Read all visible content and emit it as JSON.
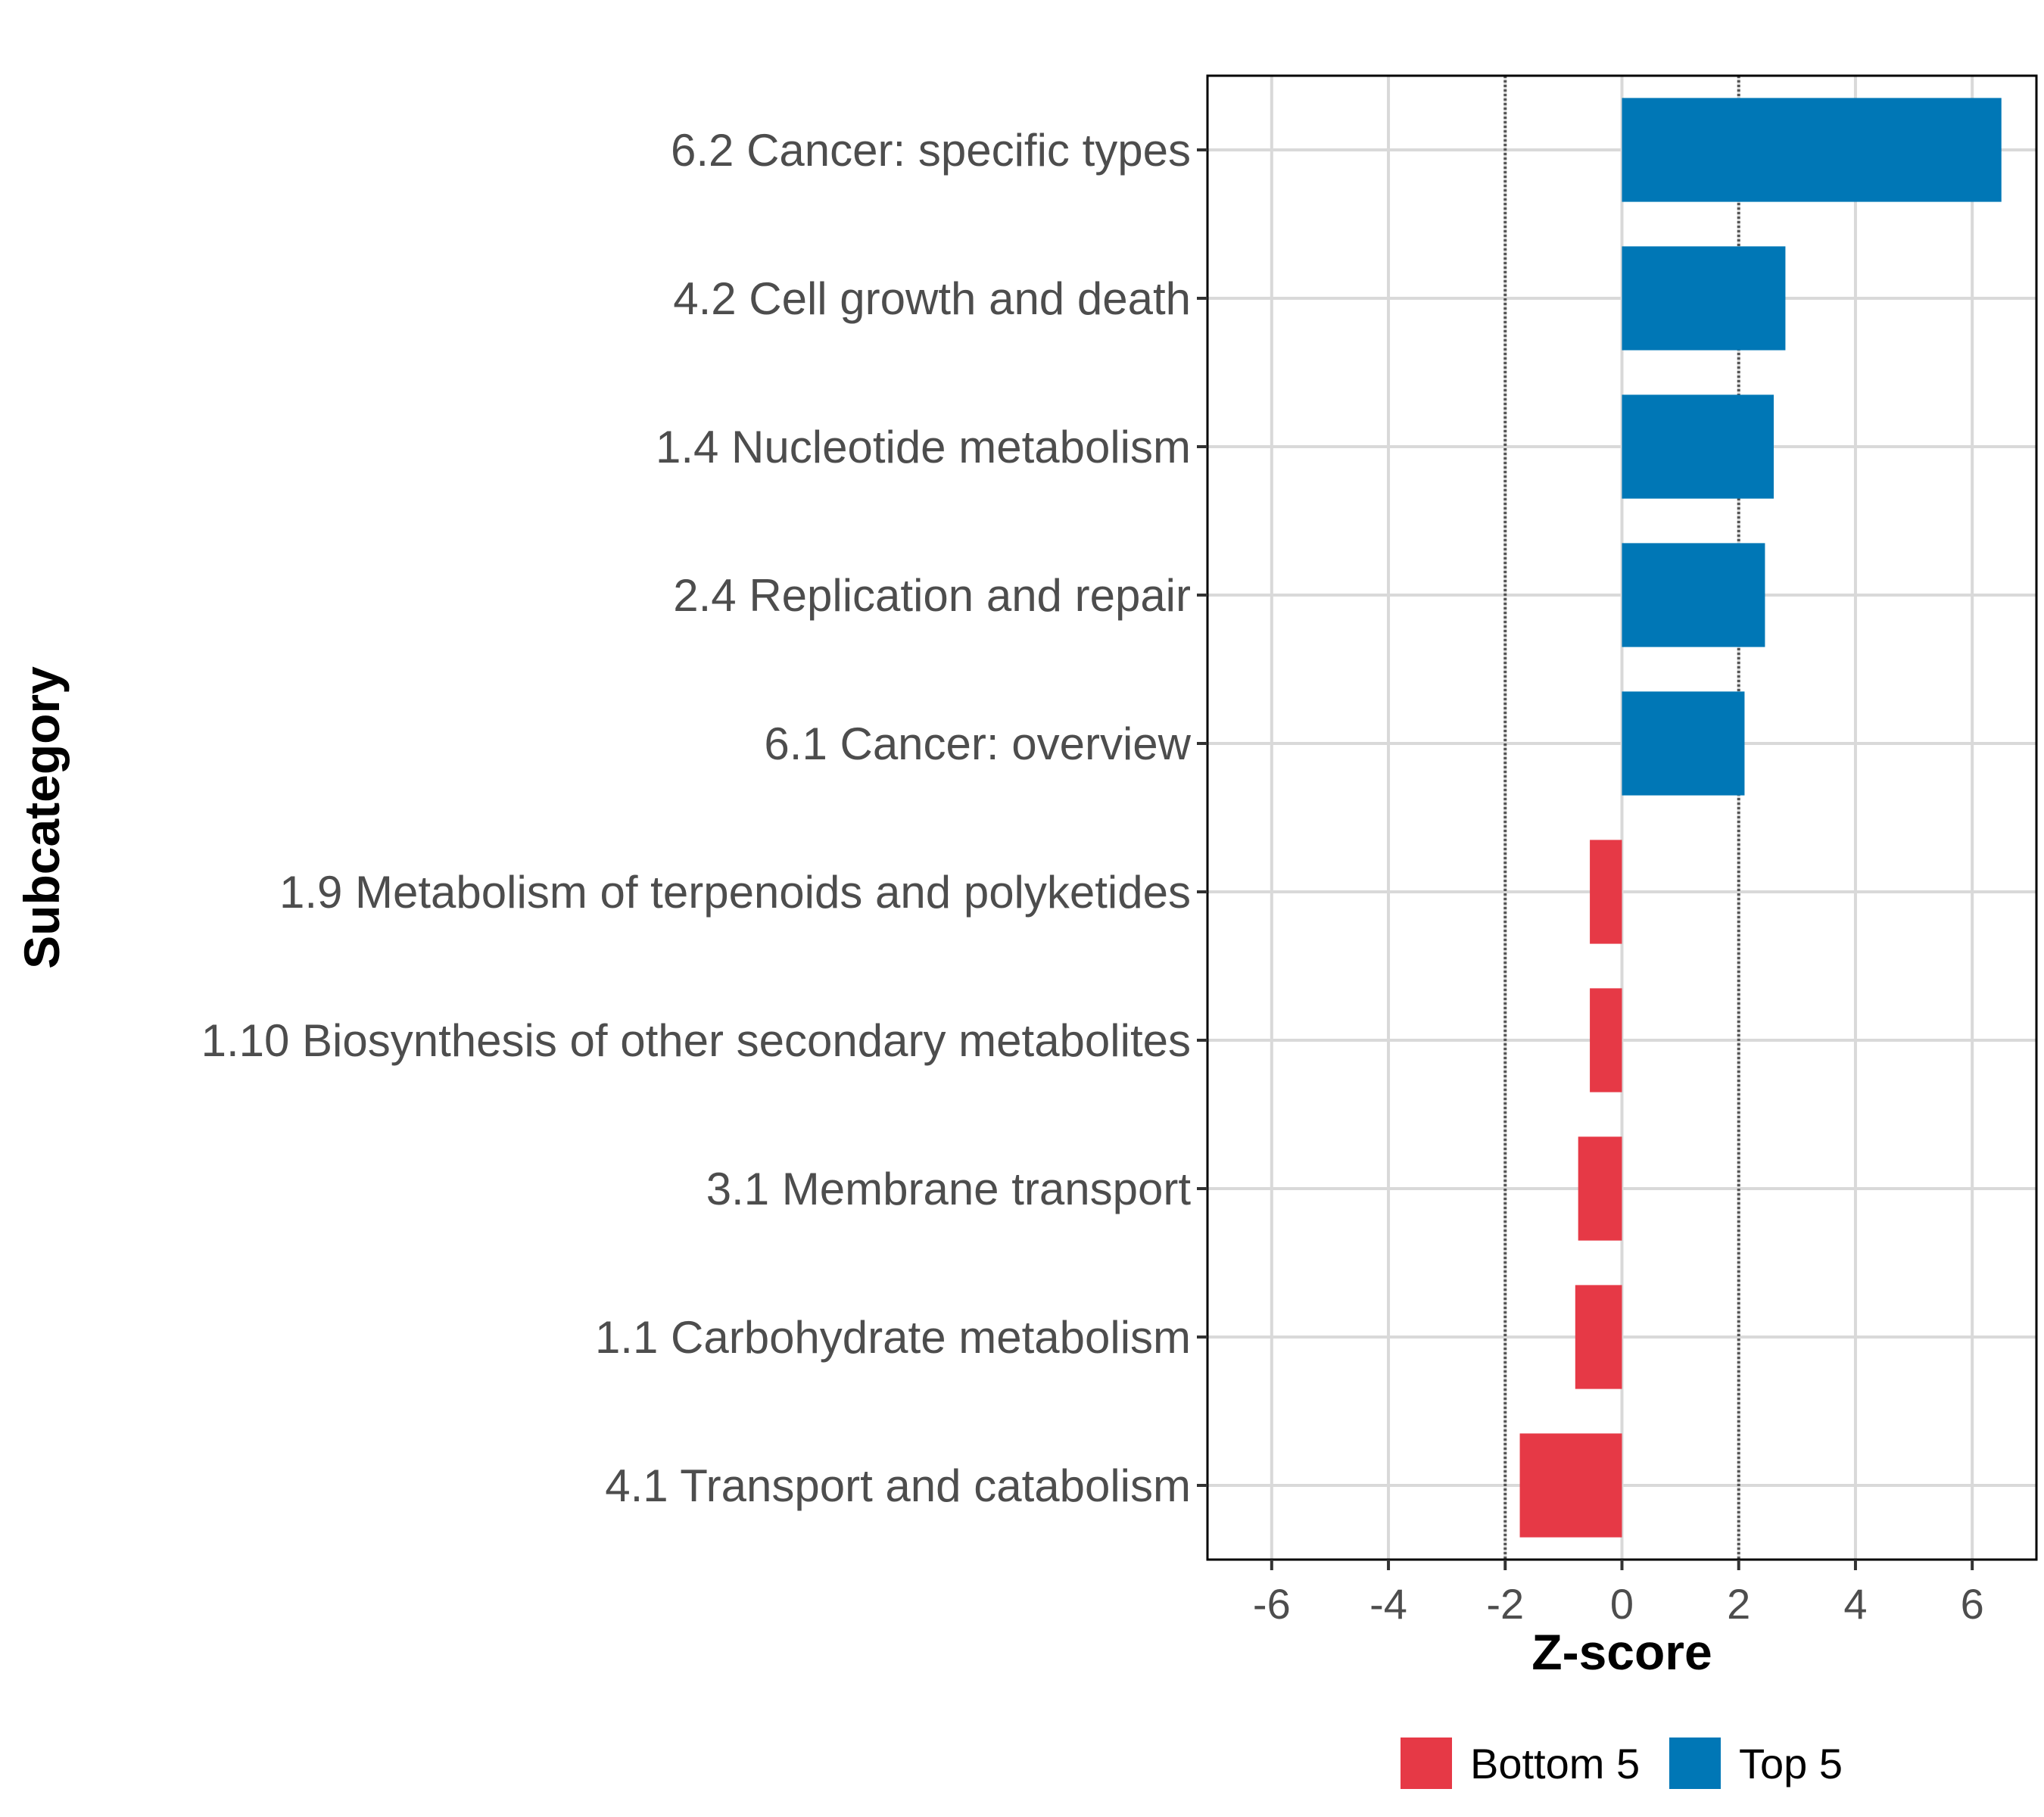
{
  "chart_data": {
    "type": "bar",
    "orientation": "horizontal",
    "categories": [
      "6.2 Cancer: specific types",
      "4.2 Cell growth and death",
      "1.4 Nucleotide metabolism",
      "2.4 Replication and repair",
      "6.1 Cancer: overview",
      "1.9 Metabolism of terpenoids and polyketides",
      "1.10 Biosynthesis of other secondary metabolites",
      "3.1 Membrane transport",
      "1.1 Carbohydrate metabolism",
      "4.1 Transport and catabolism"
    ],
    "values": [
      6.5,
      2.8,
      2.6,
      2.45,
      2.1,
      -0.55,
      -0.55,
      -0.75,
      -0.8,
      -1.75
    ],
    "groups": [
      "Top 5",
      "Top 5",
      "Top 5",
      "Top 5",
      "Top 5",
      "Bottom 5",
      "Bottom 5",
      "Bottom 5",
      "Bottom 5",
      "Bottom 5"
    ],
    "xlabel": "Z-score",
    "ylabel": "Subcategory",
    "xlim": [
      -7.1,
      7.1
    ],
    "xticks": [
      -6,
      -4,
      -2,
      0,
      2,
      4,
      6
    ],
    "xtick_labels": [
      "-6",
      "-4",
      "-2",
      "0",
      "2",
      "4",
      "6"
    ],
    "reference_lines": [
      -2,
      2
    ],
    "grid": true,
    "legend": {
      "position": "bottom",
      "entries": [
        {
          "label": "Bottom 5",
          "color": "#e63946"
        },
        {
          "label": "Top 5",
          "color": "#0077b6"
        }
      ]
    },
    "colors": {
      "Top 5": "#0077b6",
      "Bottom 5": "#e63946"
    }
  }
}
